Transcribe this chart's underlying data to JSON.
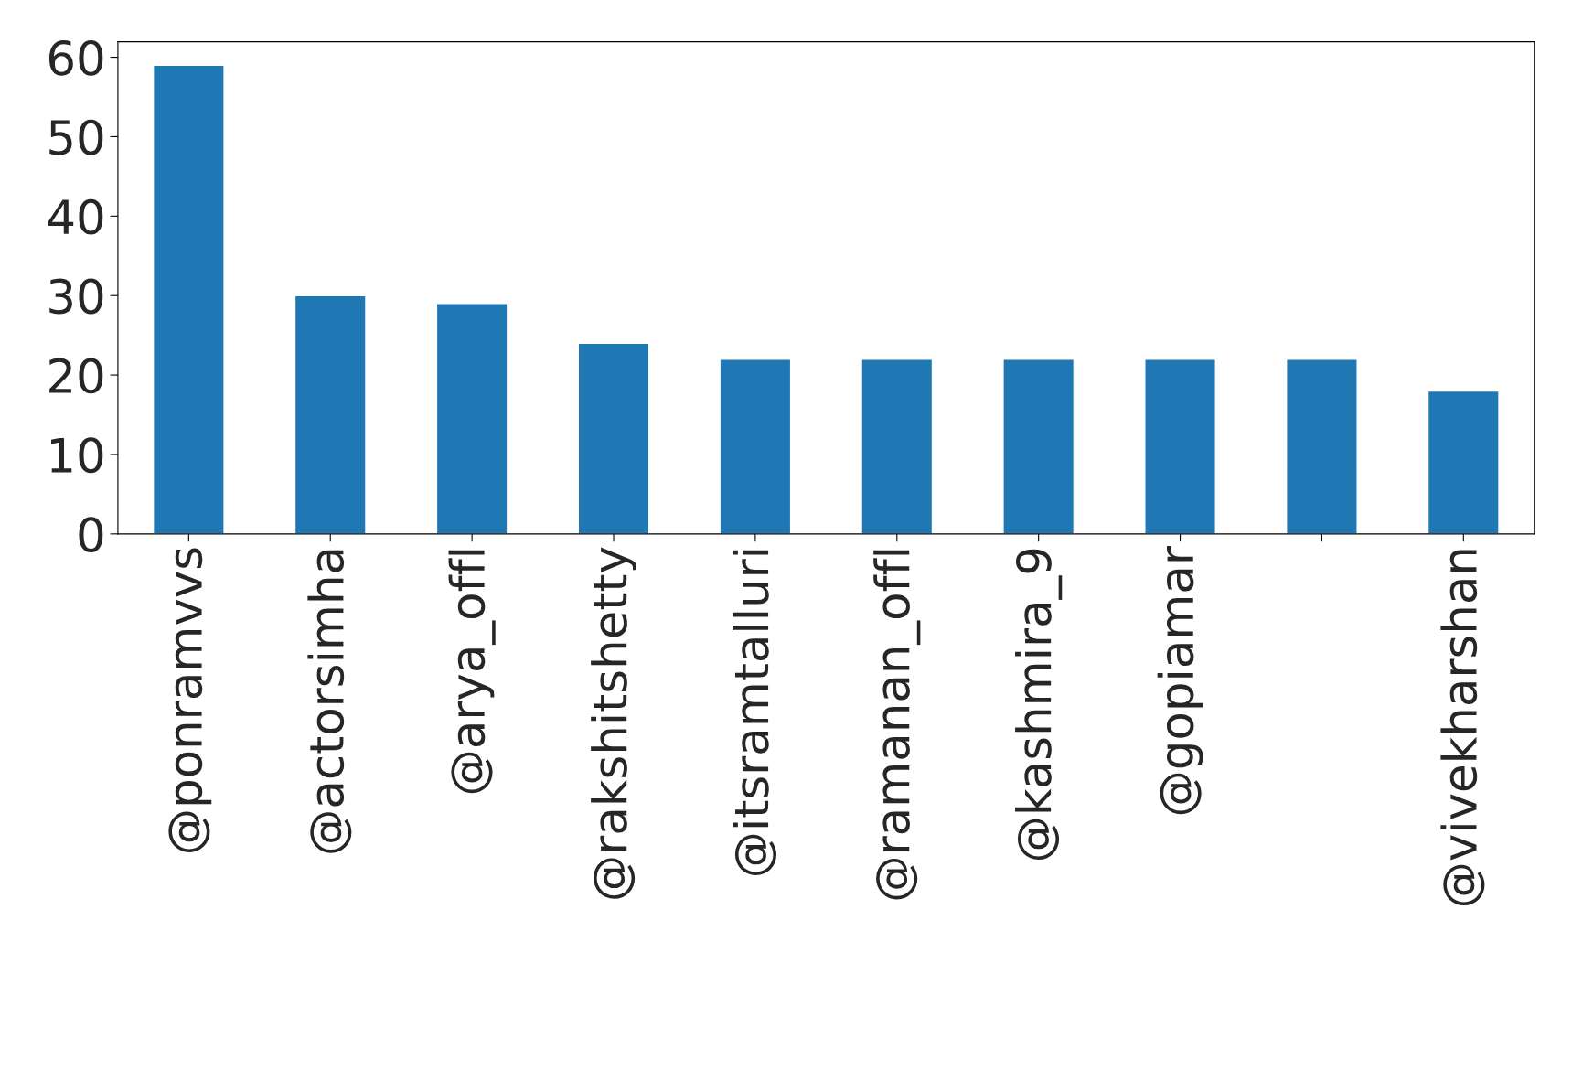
{
  "chart_data": {
    "type": "bar",
    "categories": [
      "@ponramvvs",
      "@actorsimha",
      "@arya_offl",
      "@rakshitshetty",
      "@itsramtalluri",
      "@ramanan_offl",
      "@kashmira_9",
      "@gopiamar",
      null,
      "@vivekharshan"
    ],
    "values": [
      59,
      30,
      29,
      24,
      22,
      22,
      22,
      22,
      22,
      18
    ],
    "color": "#1f77b4",
    "ylim": [
      0,
      61.95
    ],
    "yticks": [
      0,
      10,
      20,
      30,
      40,
      50,
      60
    ],
    "grid": false,
    "legend": false
  }
}
